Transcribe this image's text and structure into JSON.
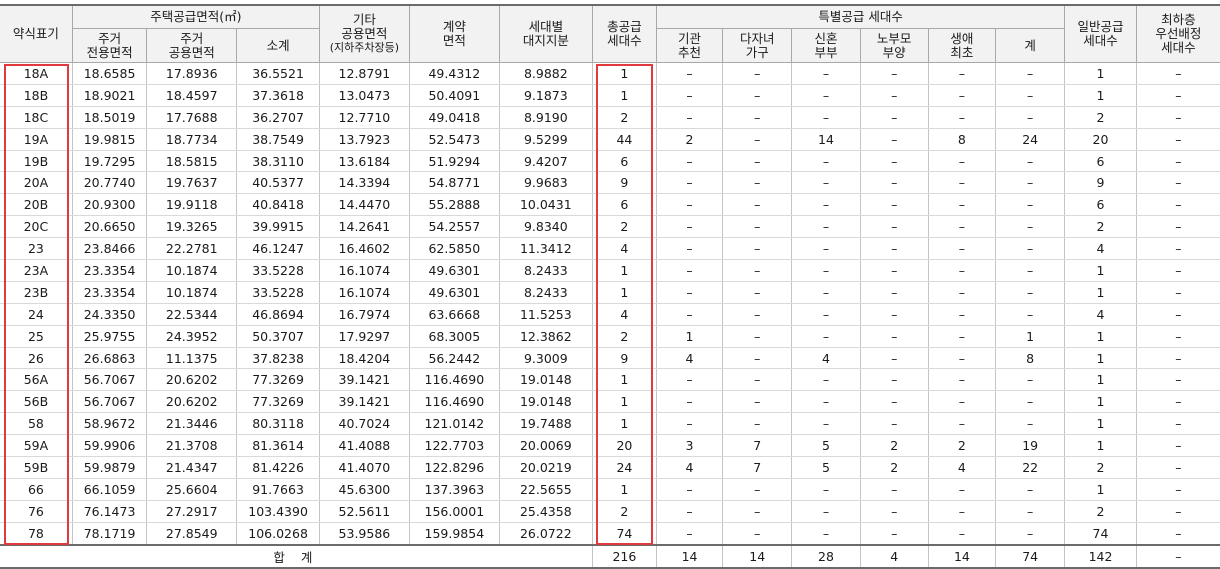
{
  "header": {
    "type_code": "약식표기",
    "housing_supply_area": "주택공급면적(㎡)",
    "private_area": [
      "주거",
      "전용면적"
    ],
    "common_area": [
      "주거",
      "공용면적"
    ],
    "subtotal": "소계",
    "other_common": [
      "기타",
      "공용면적"
    ],
    "other_common_note": "(지하주차장등)",
    "contract_area": [
      "계약",
      "면적"
    ],
    "land_share": [
      "세대별",
      "대지지분"
    ],
    "total_supply": [
      "총공급",
      "세대수"
    ],
    "special_supply": "특별공급 세대수",
    "institution": [
      "기관",
      "추천"
    ],
    "multi_child": [
      "다자녀",
      "가구"
    ],
    "newlywed": [
      "신혼",
      "부부"
    ],
    "elderly": [
      "노부모",
      "부양"
    ],
    "first_life": [
      "생애",
      "최초"
    ],
    "special_sum": "계",
    "general_supply": [
      "일반공급",
      "세대수"
    ],
    "lowest_floor": [
      "최하층",
      "우선배정",
      "세대수"
    ]
  },
  "rows": [
    [
      "18A",
      "18.6585",
      "17.8936",
      "36.5521",
      "12.8791",
      "49.4312",
      "8.9882",
      "1",
      "–",
      "–",
      "–",
      "–",
      "–",
      "–",
      "1",
      "–"
    ],
    [
      "18B",
      "18.9021",
      "18.4597",
      "37.3618",
      "13.0473",
      "50.4091",
      "9.1873",
      "1",
      "–",
      "–",
      "–",
      "–",
      "–",
      "–",
      "1",
      "–"
    ],
    [
      "18C",
      "18.5019",
      "17.7688",
      "36.2707",
      "12.7710",
      "49.0418",
      "8.9190",
      "2",
      "–",
      "–",
      "–",
      "–",
      "–",
      "–",
      "2",
      "–"
    ],
    [
      "19A",
      "19.9815",
      "18.7734",
      "38.7549",
      "13.7923",
      "52.5473",
      "9.5299",
      "44",
      "2",
      "–",
      "14",
      "–",
      "8",
      "24",
      "20",
      "–"
    ],
    [
      "19B",
      "19.7295",
      "18.5815",
      "38.3110",
      "13.6184",
      "51.9294",
      "9.4207",
      "6",
      "–",
      "–",
      "–",
      "–",
      "–",
      "–",
      "6",
      "–"
    ],
    [
      "20A",
      "20.7740",
      "19.7637",
      "40.5377",
      "14.3394",
      "54.8771",
      "9.9683",
      "9",
      "–",
      "–",
      "–",
      "–",
      "–",
      "–",
      "9",
      "–"
    ],
    [
      "20B",
      "20.9300",
      "19.9118",
      "40.8418",
      "14.4470",
      "55.2888",
      "10.0431",
      "6",
      "–",
      "–",
      "–",
      "–",
      "–",
      "–",
      "6",
      "–"
    ],
    [
      "20C",
      "20.6650",
      "19.3265",
      "39.9915",
      "14.2641",
      "54.2557",
      "9.8340",
      "2",
      "–",
      "–",
      "–",
      "–",
      "–",
      "–",
      "2",
      "–"
    ],
    [
      "23",
      "23.8466",
      "22.2781",
      "46.1247",
      "16.4602",
      "62.5850",
      "11.3412",
      "4",
      "–",
      "–",
      "–",
      "–",
      "–",
      "–",
      "4",
      "–"
    ],
    [
      "23A",
      "23.3354",
      "10.1874",
      "33.5228",
      "16.1074",
      "49.6301",
      "8.2433",
      "1",
      "–",
      "–",
      "–",
      "–",
      "–",
      "–",
      "1",
      "–"
    ],
    [
      "23B",
      "23.3354",
      "10.1874",
      "33.5228",
      "16.1074",
      "49.6301",
      "8.2433",
      "1",
      "–",
      "–",
      "–",
      "–",
      "–",
      "–",
      "1",
      "–"
    ],
    [
      "24",
      "24.3350",
      "22.5344",
      "46.8694",
      "16.7974",
      "63.6668",
      "11.5253",
      "4",
      "–",
      "–",
      "–",
      "–",
      "–",
      "–",
      "4",
      "–"
    ],
    [
      "25",
      "25.9755",
      "24.3952",
      "50.3707",
      "17.9297",
      "68.3005",
      "12.3862",
      "2",
      "1",
      "–",
      "–",
      "–",
      "–",
      "1",
      "1",
      "–"
    ],
    [
      "26",
      "26.6863",
      "11.1375",
      "37.8238",
      "18.4204",
      "56.2442",
      "9.3009",
      "9",
      "4",
      "–",
      "4",
      "–",
      "–",
      "8",
      "1",
      "–"
    ],
    [
      "56A",
      "56.7067",
      "20.6202",
      "77.3269",
      "39.1421",
      "116.4690",
      "19.0148",
      "1",
      "–",
      "–",
      "–",
      "–",
      "–",
      "–",
      "1",
      "–"
    ],
    [
      "56B",
      "56.7067",
      "20.6202",
      "77.3269",
      "39.1421",
      "116.4690",
      "19.0148",
      "1",
      "–",
      "–",
      "–",
      "–",
      "–",
      "–",
      "1",
      "–"
    ],
    [
      "58",
      "58.9672",
      "21.3446",
      "80.3118",
      "40.7024",
      "121.0142",
      "19.7488",
      "1",
      "–",
      "–",
      "–",
      "–",
      "–",
      "–",
      "1",
      "–"
    ],
    [
      "59A",
      "59.9906",
      "21.3708",
      "81.3614",
      "41.4088",
      "122.7703",
      "20.0069",
      "20",
      "3",
      "7",
      "5",
      "2",
      "2",
      "19",
      "1",
      "–"
    ],
    [
      "59B",
      "59.9879",
      "21.4347",
      "81.4226",
      "41.4070",
      "122.8296",
      "20.0219",
      "24",
      "4",
      "7",
      "5",
      "2",
      "4",
      "22",
      "2",
      "–"
    ],
    [
      "66",
      "66.1059",
      "25.6604",
      "91.7663",
      "45.6300",
      "137.3963",
      "22.5655",
      "1",
      "–",
      "–",
      "–",
      "–",
      "–",
      "–",
      "1",
      "–"
    ],
    [
      "76",
      "76.1473",
      "27.2917",
      "103.4390",
      "52.5611",
      "156.0001",
      "25.4358",
      "2",
      "–",
      "–",
      "–",
      "–",
      "–",
      "–",
      "2",
      "–"
    ],
    [
      "78",
      "78.1719",
      "27.8549",
      "106.0268",
      "53.9586",
      "159.9854",
      "26.0722",
      "74",
      "–",
      "–",
      "–",
      "–",
      "–",
      "–",
      "74",
      "–"
    ]
  ],
  "total": {
    "label": "합 계",
    "values": [
      "216",
      "14",
      "14",
      "28",
      "4",
      "14",
      "74",
      "142",
      "–"
    ]
  },
  "highlight_color": "#e0393e"
}
